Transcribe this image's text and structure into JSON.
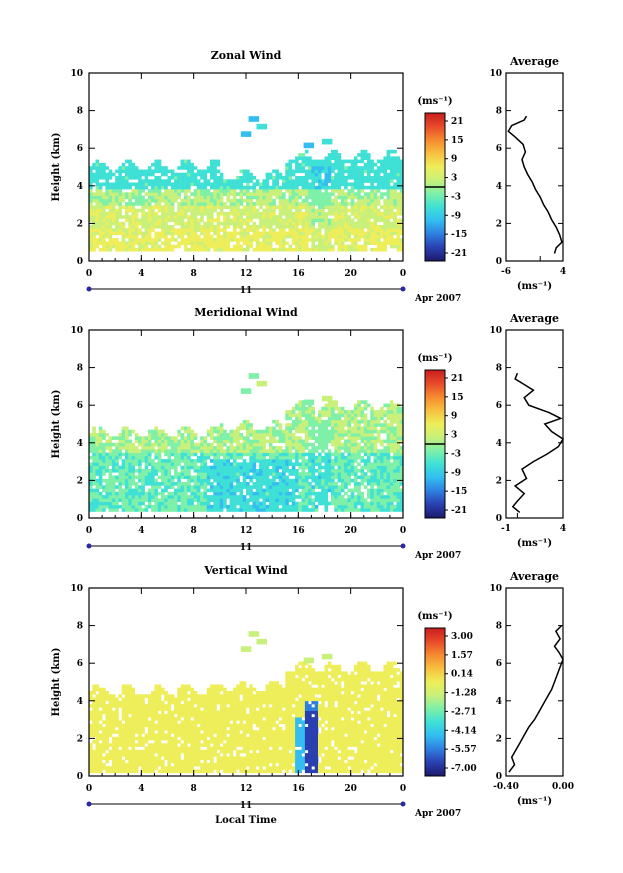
{
  "figure": {
    "xlabel": "Local Time",
    "date_label": "Apr 2007",
    "day_label": "11",
    "cbar_unit": "(ms⁻¹)",
    "avg_unit": "(ms⁻¹)"
  },
  "colormap": [
    "#1c1a6b",
    "#2a3fb0",
    "#2f7fe0",
    "#33bdf0",
    "#3fe0d6",
    "#7ef0a8",
    "#c8f07a",
    "#eeee5a",
    "#f8c040",
    "#f58a30",
    "#e84a2a",
    "#c81e1e"
  ],
  "chart_data": [
    {
      "type": "heatmap",
      "title": "Zonal Wind",
      "xlabel": "",
      "ylabel": "Height (km)",
      "xlim": [
        0,
        24
      ],
      "ylim": [
        0,
        10
      ],
      "xticks": [
        "0",
        "4",
        "8",
        "12",
        "16",
        "20",
        "0"
      ],
      "yticks": [
        "0",
        "2",
        "4",
        "6",
        "8",
        "10"
      ],
      "colorbar": {
        "min": -21,
        "max": 21,
        "ticks": [
          "21",
          "15",
          "9",
          "3",
          "-3",
          "-9",
          "-15",
          "-21"
        ]
      },
      "profile": {
        "title": "Average",
        "xlabel": "(ms⁻¹)",
        "xlim": [
          -6,
          4
        ],
        "xticks": [
          "-6",
          "4"
        ],
        "ylim": [
          0,
          10
        ],
        "yticks": [
          "0",
          "2",
          "4",
          "6",
          "8",
          "10"
        ],
        "points": [
          [
            2.5,
            0.4
          ],
          [
            2.8,
            0.7
          ],
          [
            3.8,
            1.0
          ],
          [
            3.4,
            1.4
          ],
          [
            2.8,
            1.8
          ],
          [
            2.0,
            2.2
          ],
          [
            1.4,
            2.6
          ],
          [
            0.6,
            3.0
          ],
          [
            0.0,
            3.4
          ],
          [
            -0.8,
            3.8
          ],
          [
            -1.4,
            4.2
          ],
          [
            -2.2,
            4.6
          ],
          [
            -2.8,
            5.0
          ],
          [
            -3.2,
            5.4
          ],
          [
            -2.6,
            5.8
          ],
          [
            -3.0,
            6.2
          ],
          [
            -4.4,
            6.6
          ],
          [
            -5.6,
            6.9
          ],
          [
            -5.0,
            7.2
          ],
          [
            -2.8,
            7.5
          ],
          [
            -2.4,
            7.7
          ]
        ]
      }
    },
    {
      "type": "heatmap",
      "title": "Meridional Wind",
      "xlabel": "",
      "ylabel": "Height (km)",
      "xlim": [
        0,
        24
      ],
      "ylim": [
        0,
        10
      ],
      "xticks": [
        "0",
        "4",
        "8",
        "12",
        "16",
        "20",
        "0"
      ],
      "yticks": [
        "0",
        "2",
        "4",
        "6",
        "8",
        "10"
      ],
      "colorbar": {
        "min": -21,
        "max": 21,
        "ticks": [
          "21",
          "15",
          "9",
          "3",
          "-3",
          "-9",
          "-15",
          "-21"
        ]
      },
      "profile": {
        "title": "Average",
        "xlabel": "(ms⁻¹)",
        "xlim": [
          -1,
          4
        ],
        "xticks": [
          "-1",
          "4"
        ],
        "ylim": [
          0,
          10
        ],
        "yticks": [
          "0",
          "2",
          "4",
          "6",
          "8",
          "10"
        ],
        "points": [
          [
            0.2,
            0.3
          ],
          [
            -0.4,
            0.6
          ],
          [
            0.0,
            0.9
          ],
          [
            0.6,
            1.3
          ],
          [
            -0.2,
            1.7
          ],
          [
            0.8,
            2.1
          ],
          [
            0.4,
            2.6
          ],
          [
            1.4,
            3.0
          ],
          [
            2.6,
            3.4
          ],
          [
            3.6,
            3.8
          ],
          [
            4.0,
            4.2
          ],
          [
            3.0,
            4.6
          ],
          [
            2.4,
            5.0
          ],
          [
            3.8,
            5.3
          ],
          [
            2.8,
            5.6
          ],
          [
            1.0,
            6.0
          ],
          [
            0.6,
            6.4
          ],
          [
            1.4,
            6.8
          ],
          [
            0.6,
            7.1
          ],
          [
            -0.2,
            7.4
          ],
          [
            0.0,
            7.7
          ]
        ]
      }
    },
    {
      "type": "heatmap",
      "title": "Vertical Wind",
      "xlabel": "Local Time",
      "ylabel": "Height (km)",
      "xlim": [
        0,
        24
      ],
      "ylim": [
        0,
        10
      ],
      "xticks": [
        "0",
        "4",
        "8",
        "12",
        "16",
        "20",
        "0"
      ],
      "yticks": [
        "0",
        "2",
        "4",
        "6",
        "8",
        "10"
      ],
      "colorbar": {
        "min": -7.0,
        "max": 3.0,
        "ticks": [
          "3.00",
          "1.57",
          "0.14",
          "-1.28",
          "-2.71",
          "-4.14",
          "-5.57",
          "-7.00"
        ]
      },
      "profile": {
        "title": "Average",
        "xlabel": "(ms⁻¹)",
        "xlim": [
          -0.4,
          0.0
        ],
        "xticks": [
          "-0.40",
          "0.00"
        ],
        "ylim": [
          0,
          10
        ],
        "yticks": [
          "0",
          "2",
          "4",
          "6",
          "8",
          "10"
        ],
        "points": [
          [
            -0.38,
            0.2
          ],
          [
            -0.34,
            0.6
          ],
          [
            -0.36,
            1.0
          ],
          [
            -0.33,
            1.4
          ],
          [
            -0.3,
            1.8
          ],
          [
            -0.27,
            2.2
          ],
          [
            -0.24,
            2.6
          ],
          [
            -0.2,
            3.0
          ],
          [
            -0.17,
            3.4
          ],
          [
            -0.14,
            3.8
          ],
          [
            -0.11,
            4.2
          ],
          [
            -0.08,
            4.6
          ],
          [
            -0.06,
            5.0
          ],
          [
            -0.04,
            5.4
          ],
          [
            -0.02,
            5.8
          ],
          [
            0.0,
            6.2
          ],
          [
            -0.03,
            6.6
          ],
          [
            -0.06,
            6.9
          ],
          [
            -0.02,
            7.3
          ],
          [
            -0.05,
            7.7
          ],
          [
            -0.01,
            8.0
          ]
        ]
      }
    }
  ]
}
